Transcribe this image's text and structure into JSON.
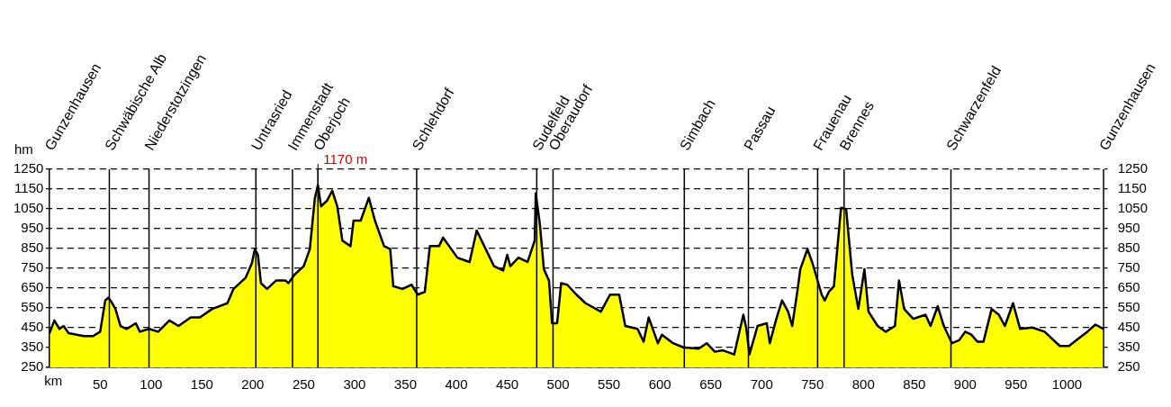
{
  "chart_data": {
    "type": "area",
    "xlabel": "km",
    "ylabel": "hm",
    "marker": "none",
    "grid": "y",
    "xlim": [
      -3,
      1040
    ],
    "xticks": [
      50,
      100,
      150,
      200,
      250,
      300,
      350,
      400,
      450,
      500,
      550,
      600,
      650,
      700,
      750,
      800,
      850,
      900,
      950,
      1000
    ],
    "ylim": [
      250,
      1250
    ],
    "yticks": [
      250,
      350,
      450,
      550,
      650,
      750,
      850,
      950,
      1050,
      1150,
      1250
    ],
    "y2lim": [
      250,
      1250
    ],
    "y2ticks": [
      250,
      350,
      450,
      550,
      650,
      750,
      850,
      950,
      1050,
      1150,
      1250
    ],
    "x": [
      0,
      5,
      10,
      14,
      19,
      34,
      43,
      50,
      55,
      58,
      61,
      65,
      70,
      76,
      85,
      89,
      98,
      107,
      118,
      127,
      139,
      148,
      160,
      175,
      181,
      193,
      199,
      202,
      205,
      208,
      214,
      223,
      232,
      235,
      241,
      250,
      256,
      261,
      264,
      267,
      273,
      278,
      283,
      288,
      296,
      299,
      306,
      314,
      320,
      329,
      335,
      338,
      347,
      356,
      362,
      369,
      374,
      383,
      387,
      401,
      413,
      420,
      437,
      446,
      450,
      453,
      461,
      470,
      477,
      478,
      482,
      486,
      491,
      494,
      499,
      503,
      509,
      518,
      527,
      542,
      551,
      560,
      566,
      578,
      584,
      589,
      598,
      602,
      613,
      623,
      638,
      646,
      654,
      662,
      673,
      682,
      685,
      688,
      696,
      705,
      708,
      714,
      720,
      726,
      730,
      735,
      738,
      745,
      750,
      759,
      762,
      766,
      771,
      778,
      783,
      789,
      795,
      801,
      805,
      814,
      822,
      831,
      835,
      840,
      849,
      861,
      866,
      873,
      879,
      887,
      894,
      900,
      906,
      912,
      918,
      926,
      933,
      939,
      947,
      954,
      966,
      978,
      993,
      1002,
      1011,
      1020,
      1028,
      1036
    ],
    "series": [
      {
        "color": "#ffff00",
        "values": [
          420,
          487,
          444,
          459,
          423,
          408,
          408,
          430,
          588,
          602,
          581,
          545,
          459,
          444,
          473,
          430,
          444,
          430,
          487,
          459,
          502,
          502,
          545,
          574,
          646,
          703,
          775,
          847,
          818,
          675,
          646,
          689,
          689,
          675,
          718,
          761,
          847,
          1106,
          1170,
          1063,
          1092,
          1142,
          1063,
          890,
          862,
          991,
          991,
          1106,
          991,
          862,
          847,
          660,
          646,
          667,
          617,
          631,
          862,
          862,
          905,
          804,
          782,
          941,
          761,
          739,
          818,
          761,
          804,
          782,
          890,
          1128,
          977,
          746,
          689,
          473,
          473,
          675,
          667,
          617,
          574,
          531,
          617,
          617,
          459,
          444,
          380,
          502,
          372,
          415,
          372,
          351,
          344,
          372,
          329,
          336,
          315,
          516,
          444,
          315,
          459,
          473,
          372,
          487,
          588,
          531,
          459,
          631,
          746,
          847,
          775,
          617,
          588,
          631,
          660,
          1056,
          1049,
          718,
          545,
          746,
          531,
          459,
          430,
          459,
          689,
          545,
          495,
          516,
          459,
          559,
          459,
          372,
          387,
          430,
          415,
          380,
          380,
          545,
          516,
          459,
          574,
          444,
          451,
          430,
          358,
          358,
          394,
          430,
          466,
          444
        ]
      }
    ],
    "ref_lines": [
      {
        "axis": "x",
        "value": 0,
        "label": "Gunzenhausen",
        "color": "#000000"
      },
      {
        "axis": "x",
        "value": 59,
        "label": "Schwäbische Alb",
        "color": "#000000"
      },
      {
        "axis": "x",
        "value": 98,
        "label": "Niederstotzingen",
        "color": "#000000"
      },
      {
        "axis": "x",
        "value": 203,
        "label": "Untrasried",
        "color": "#000000"
      },
      {
        "axis": "x",
        "value": 239,
        "label": "Immenstadt",
        "color": "#000000"
      },
      {
        "axis": "x",
        "value": 264,
        "label": "Oberjoch",
        "color": "#000000"
      },
      {
        "axis": "x",
        "value": 361,
        "label": "Schlehdorf",
        "color": "#000000"
      },
      {
        "axis": "x",
        "value": 479,
        "label": "Sudelfeld",
        "color": "#000000"
      },
      {
        "axis": "x",
        "value": 495,
        "label": "Oberaudorf",
        "color": "#000000"
      },
      {
        "axis": "x",
        "value": 624,
        "label": "Simbach",
        "color": "#000000"
      },
      {
        "axis": "x",
        "value": 687,
        "label": "Passau",
        "color": "#000000"
      },
      {
        "axis": "x",
        "value": 755,
        "label": "Frauenau",
        "color": "#000000"
      },
      {
        "axis": "x",
        "value": 781,
        "label": "Brennes",
        "color": "#000000"
      },
      {
        "axis": "x",
        "value": 886,
        "label": "Schwarzenfeld",
        "color": "#000000"
      },
      {
        "axis": "x",
        "value": 1036,
        "label": "Gunzenhausen",
        "color": "#000000"
      }
    ],
    "annotations": [
      {
        "text": "1170 m",
        "x": 264,
        "y": 1170
      }
    ]
  }
}
